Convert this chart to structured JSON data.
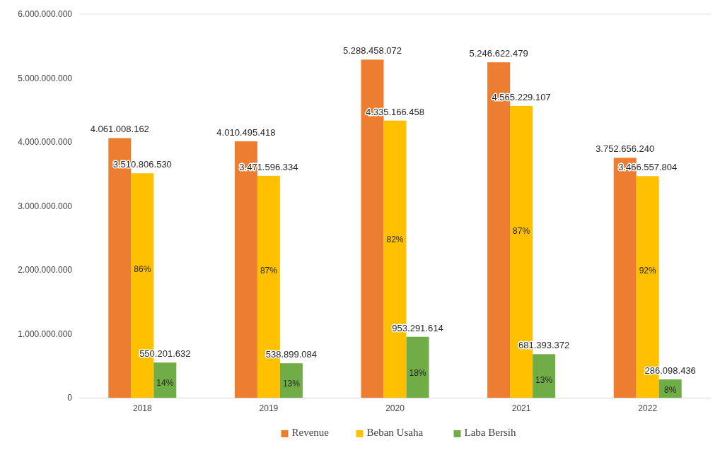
{
  "chart_data": {
    "type": "bar",
    "categories": [
      "2018",
      "2019",
      "2020",
      "2021",
      "2022"
    ],
    "series": [
      {
        "name": "Revenue",
        "color": "#ed7d31",
        "values": [
          4061008162,
          4010495418,
          5288458072,
          5246622479,
          3752656240
        ],
        "value_labels": [
          "4.061.008.162",
          "4.010.495.418",
          "5.288.458.072",
          "5.246.622.479",
          "3.752.656.240"
        ]
      },
      {
        "name": "Beban Usaha",
        "color": "#ffc000",
        "values": [
          3510806530,
          3471596334,
          4335166458,
          4565229107,
          3466557804
        ],
        "value_labels": [
          "3.510.806.530",
          "3.471.596.334",
          "4.335.166.458",
          "4.565.229.107",
          "3.466.557.804"
        ]
      },
      {
        "name": "Laba Bersih",
        "color": "#70ad47",
        "values": [
          550201632,
          538899084,
          953291614,
          681393372,
          286098436
        ],
        "value_labels": [
          "550.201.632",
          "538.899.084",
          "953.291.614",
          "681.393.372",
          "286.098.436"
        ]
      }
    ],
    "ylim": [
      0,
      6000000000
    ],
    "yticks": [
      0,
      {
        "value": 1000000000,
        "label": "1.000.000.000"
      },
      {
        "value": 2000000000,
        "label": "2.000.000.000"
      },
      {
        "value": 3000000000,
        "label": "3.000.000.000"
      },
      {
        "value": 4000000000,
        "label": "4.000.000.000"
      },
      {
        "value": 5000000000,
        "label": "5.000.000.000"
      },
      {
        "value": 6000000000,
        "label": "6.000.000.000"
      }
    ],
    "legend": "bottom",
    "grid": false,
    "annotations": [
      "86%",
      "87%",
      "82%",
      "87%",
      "92%",
      "14%",
      "13%",
      "18%",
      "13%",
      "8%"
    ]
  }
}
